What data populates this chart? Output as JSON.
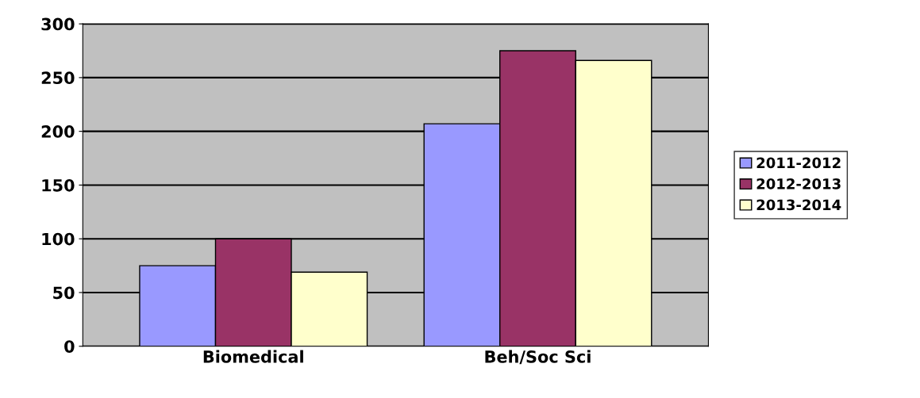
{
  "chart_data": {
    "type": "bar",
    "categories": [
      "Biomedical",
      "Beh/Soc Sci"
    ],
    "series": [
      {
        "name": "2011-2012",
        "color": "#9999ff",
        "values": [
          75,
          207
        ]
      },
      {
        "name": "2012-2013",
        "color": "#993366",
        "values": [
          100,
          275
        ]
      },
      {
        "name": "2013-2014",
        "color": "#ffffcc",
        "values": [
          69,
          266
        ]
      }
    ],
    "ylim": [
      0,
      300
    ],
    "yticks": [
      0,
      50,
      100,
      150,
      200,
      250,
      300
    ],
    "grid": "y",
    "legend": "right"
  }
}
